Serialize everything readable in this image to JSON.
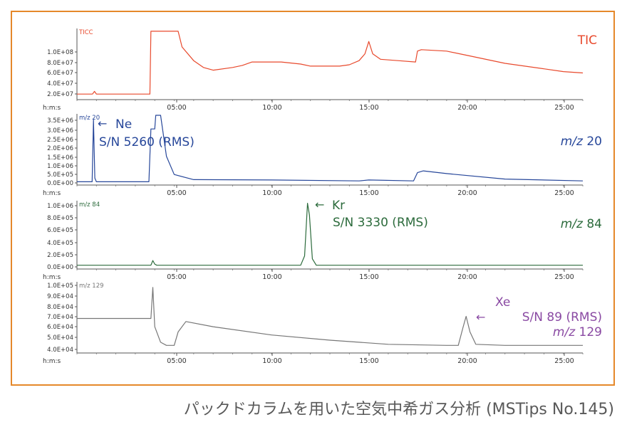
{
  "caption": "パックドカラムを用いた空気中希ガス分析 (MSTips No.145)",
  "colors": {
    "frame": "#e5882a",
    "tic": "#e8492c",
    "mz20": "#27479a",
    "mz84": "#2c6b3c",
    "mz129": "#777777",
    "xe": "#8a4aa3"
  },
  "chart_data": [
    {
      "type": "line",
      "panel": "tic",
      "trace_label": "TICC",
      "label": "TIC",
      "time_axis_label": "h:m:s",
      "xticks": [
        "05:00",
        "10:00",
        "15:00",
        "20:00",
        "25:00"
      ],
      "xlim": [
        0,
        26.0
      ],
      "yticks": [
        "2.0E+07",
        "4.0E+07",
        "6.0E+07",
        "8.0E+07",
        "1.0E+08"
      ],
      "ylim": [
        15000000.0,
        115000000.0
      ],
      "x": [
        0,
        0.8,
        0.9,
        1.0,
        3.75,
        3.8,
        5.2,
        5.4,
        6.0,
        6.5,
        7.0,
        8.0,
        8.5,
        9.0,
        10.5,
        11.5,
        12.0,
        13.0,
        13.5,
        14.0,
        14.5,
        14.8,
        15.0,
        15.2,
        15.6,
        16.5,
        17.4,
        17.5,
        17.7,
        19.0,
        20.0,
        22.0,
        24.0,
        25.0,
        26.0
      ],
      "y": [
        21000000.0,
        21000000.0,
        25000000.0,
        21000000.0,
        21000000.0,
        113000000.0,
        113000000.0,
        90000000.0,
        70000000.0,
        60000000.0,
        56000000.0,
        60000000.0,
        63000000.0,
        68000000.0,
        68000000.0,
        65000000.0,
        62000000.0,
        62000000.0,
        62000000.0,
        64000000.0,
        70000000.0,
        80000000.0,
        98000000.0,
        80000000.0,
        72000000.0,
        70000000.0,
        68000000.0,
        84000000.0,
        86000000.0,
        84000000.0,
        78000000.0,
        66000000.0,
        58000000.0,
        54000000.0,
        52000000.0
      ]
    },
    {
      "type": "line",
      "panel": "mz20",
      "trace_label": "m/z 20",
      "label_prefix": "m/z",
      "label_value": "20",
      "time_axis_label": "h:m:s",
      "xticks": [
        "05:00",
        "10:00",
        "15:00",
        "20:00",
        "25:00"
      ],
      "xlim": [
        0,
        26.0
      ],
      "yticks": [
        "0.0E+00",
        "5.0E+05",
        "1.0E+06",
        "1.5E+06",
        "2.0E+06",
        "2.5E+06",
        "3.0E+06",
        "3.5E+06"
      ],
      "ylim": [
        0,
        3750000.0
      ],
      "x": [
        0,
        0.78,
        0.85,
        0.92,
        1.0,
        3.7,
        3.8,
        4.0,
        4.05,
        4.3,
        4.6,
        5.0,
        6.0,
        10.0,
        14.5,
        15.0,
        17.3,
        17.5,
        17.8,
        19.0,
        22.0,
        26.0
      ],
      "y": [
        100000.0,
        100000.0,
        3500000.0,
        300000.0,
        100000.0,
        100000.0,
        3000000.0,
        3000000.0,
        3750000.0,
        3750000.0,
        1500000.0,
        500000.0,
        220000.0,
        200000.0,
        150000.0,
        200000.0,
        150000.0,
        600000.0,
        700000.0,
        550000.0,
        250000.0,
        150000.0
      ],
      "annotation": {
        "name": "Ne",
        "sn": "S/N 5260 (RMS)"
      }
    },
    {
      "type": "line",
      "panel": "mz84",
      "trace_label": "m/z 84",
      "label_prefix": "m/z",
      "label_value": "84",
      "time_axis_label": "h:m:s",
      "xticks": [
        "05:00",
        "10:00",
        "15:00",
        "20:00",
        "25:00"
      ],
      "xlim": [
        0,
        26.0
      ],
      "yticks": [
        "0.0E+00",
        "2.0E+05",
        "4.0E+05",
        "6.0E+05",
        "8.0E+05",
        "1.0E+06"
      ],
      "ylim": [
        0,
        1120000.0
      ],
      "x": [
        0,
        3.8,
        3.9,
        4.0,
        4.1,
        6.0,
        11.5,
        11.7,
        11.85,
        11.95,
        12.1,
        12.3,
        26.0
      ],
      "y": [
        40000.0,
        40000.0,
        120000.0,
        60000.0,
        40000.0,
        40000.0,
        40000.0,
        200000.0,
        1100000.0,
        900000.0,
        150000.0,
        40000.0,
        40000.0
      ],
      "annotation": {
        "name": "Kr",
        "sn": "S/N 3330 (RMS)"
      }
    },
    {
      "type": "line",
      "panel": "mz129",
      "trace_label": "m/z 129",
      "label_prefix": "m/z",
      "label_value": "129",
      "time_axis_label": "h:m:s",
      "xticks": [
        "05:00",
        "10:00",
        "15:00",
        "20:00",
        "25:00"
      ],
      "xlim": [
        0,
        26.0
      ],
      "yticks": [
        "4.0E+04",
        "5.0E+04",
        "6.0E+04",
        "7.0E+04",
        "8.0E+04",
        "9.0E+04",
        "1.0E+05"
      ],
      "ylim": [
        36000.0,
        102000.0
      ],
      "x": [
        0,
        3.8,
        3.9,
        4.0,
        4.3,
        4.6,
        5.0,
        5.2,
        5.6,
        7.0,
        10.0,
        13.0,
        16.0,
        19.0,
        19.6,
        19.85,
        20.0,
        20.2,
        20.5,
        22.0,
        26.0
      ],
      "y": [
        68000.0,
        68000.0,
        98000.0,
        60000.0,
        45000.0,
        42000.0,
        42000.0,
        55000.0,
        65000.0,
        60000.0,
        52000.0,
        47000.0,
        43000.0,
        42000.0,
        42000.0,
        60000.0,
        70000.0,
        55000.0,
        43000.0,
        42000.0,
        42000.0
      ],
      "annotation": {
        "name": "Xe",
        "sn": "S/N 89 (RMS)"
      }
    }
  ]
}
